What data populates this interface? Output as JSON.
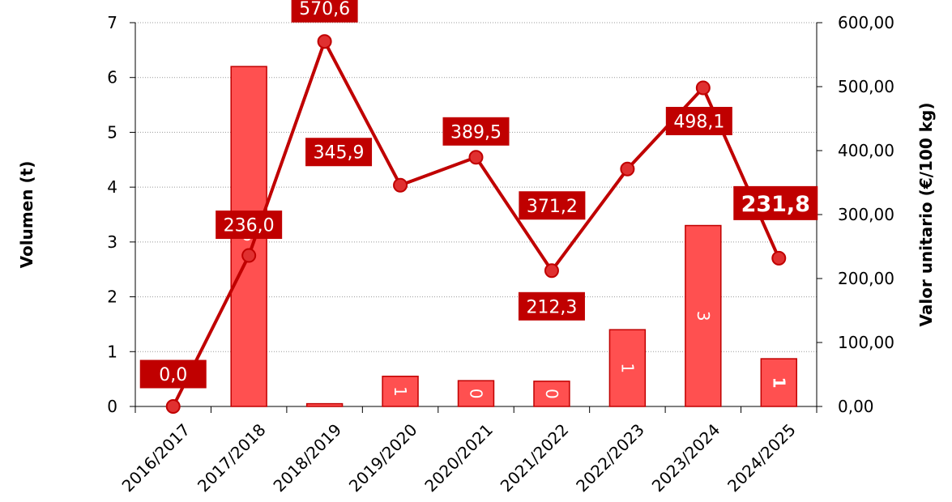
{
  "chart_data": {
    "type": "bar-line",
    "y_label": "Volumen (t)",
    "y2_label": "Valor unitario (€/100 kg)",
    "categories": [
      "2016/2017",
      "2017/2018",
      "2018/2019",
      "2019/2020",
      "2020/2021",
      "2021/2022",
      "2022/2023",
      "2023/2024",
      "2024/2025"
    ],
    "series": [
      {
        "type": "bar",
        "color": "#ff5050",
        "values": [
          0,
          6.2,
          0.05,
          0.55,
          0.47,
          0.46,
          1.4,
          3.3,
          0.87
        ],
        "value_labels": [
          null,
          "6",
          null,
          "1",
          "0",
          "0",
          "1",
          "3",
          "1"
        ]
      },
      {
        "type": "line",
        "axis": "y2",
        "color": "#c00000",
        "values": [
          0.0,
          236.0,
          570.6,
          345.9,
          389.5,
          212.3,
          371.2,
          498.1,
          231.8
        ],
        "value_labels": [
          "0,0",
          "236,0",
          "570,6",
          "345,9",
          "389,5",
          "212,3",
          "371,2",
          "498,1",
          "231,8"
        ]
      }
    ],
    "ylim": [
      0,
      7
    ],
    "yticks": [
      0,
      1,
      2,
      3,
      4,
      5,
      6,
      7
    ],
    "y2lim": [
      0,
      600
    ],
    "y2ticks": [
      {
        "value": 0,
        "label": "0,00"
      },
      {
        "value": 100,
        "label": "100,00"
      },
      {
        "value": 200,
        "label": "200,00"
      },
      {
        "value": 300,
        "label": "300,00"
      },
      {
        "value": 400,
        "label": "400,00"
      },
      {
        "value": 500,
        "label": "500,00"
      },
      {
        "value": 600,
        "label": "600,00"
      }
    ],
    "grid": true
  }
}
